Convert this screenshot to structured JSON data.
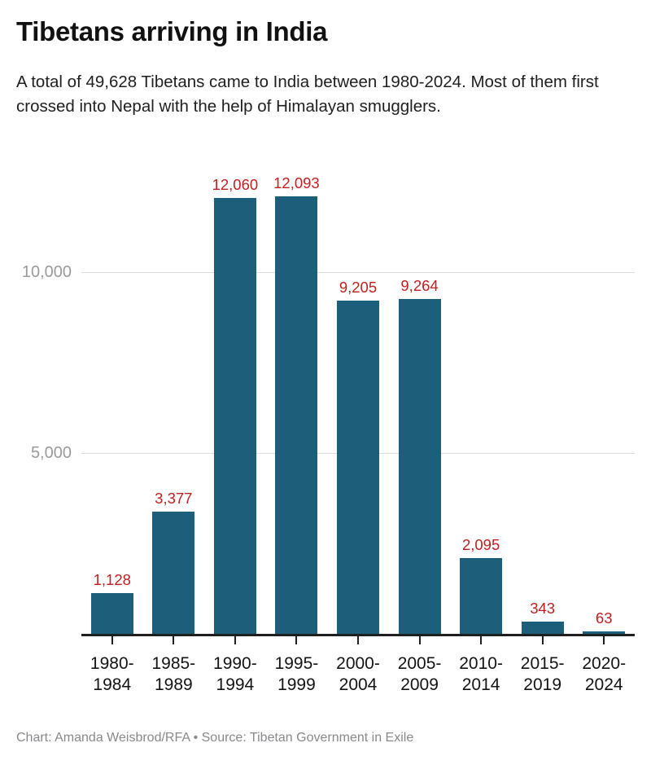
{
  "header": {
    "title": "Tibetans arriving in India",
    "subtitle": "A total of 49,628 Tibetans came to India between 1980-2024. Most of them first crossed into Nepal with the help of Himalayan smugglers."
  },
  "footer": {
    "credit": "Chart: Amanda Weisbrod/RFA • Source: Tibetan Government in Exile"
  },
  "colors": {
    "bar": "#1d5f7a",
    "value_label": "#c21f1f",
    "gridline": "#dcdcdc",
    "y_tick_label": "#9b9b9b",
    "x_tick_label": "#141414",
    "axis_line": "#1f1f1f",
    "credit_text": "#87898c",
    "background": "#ffffff"
  },
  "chart_data": {
    "type": "bar",
    "title": "Tibetans arriving in India",
    "subtitle": "A total of 49,628 Tibetans came to India between 1980-2024. Most of them first crossed into Nepal with the help of Himalayan smugglers.",
    "xlabel": "",
    "ylabel": "",
    "categories": [
      "1980-1984",
      "1985-1989",
      "1990-1994",
      "1995-1999",
      "2000-2004",
      "2005-2009",
      "2010-2014",
      "2015-2019",
      "2020-2024"
    ],
    "category_lines": [
      [
        "1980-",
        "1984"
      ],
      [
        "1985-",
        "1989"
      ],
      [
        "1990-",
        "1994"
      ],
      [
        "1995-",
        "1999"
      ],
      [
        "2000-",
        "2004"
      ],
      [
        "2005-",
        "2009"
      ],
      [
        "2010-",
        "2014"
      ],
      [
        "2015-",
        "2019"
      ],
      [
        "2020-",
        "2024"
      ]
    ],
    "values": [
      1128,
      3377,
      12060,
      12093,
      9205,
      9264,
      2095,
      343,
      63
    ],
    "value_labels": [
      "1,128",
      "3,377",
      "12,060",
      "12,093",
      "9,205",
      "9,264",
      "2,095",
      "343",
      "63"
    ],
    "ylim": [
      0,
      12900
    ],
    "yticks": [
      {
        "value": 5000,
        "label": "5,000"
      },
      {
        "value": 10000,
        "label": "10,000"
      }
    ],
    "grid": true,
    "legend": false,
    "data_labels_position": "above-bars",
    "source": "Tibetan Government in Exile",
    "credit": "Chart: Amanda Weisbrod/RFA • Source: Tibetan Government in Exile"
  }
}
